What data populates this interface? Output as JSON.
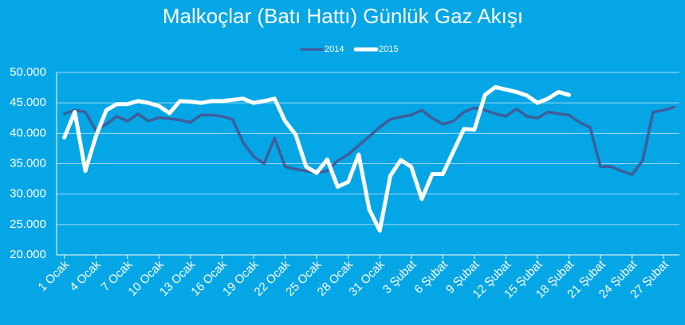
{
  "chart_data": {
    "type": "line",
    "title": "Malkoçlar (Batı Hattı) Günlük Gaz Akışı",
    "categories": [
      "1 Ocak",
      null,
      null,
      "4 Ocak",
      null,
      null,
      "7 Ocak",
      null,
      null,
      "10 Ocak",
      null,
      null,
      "13 Ocak",
      null,
      null,
      "16 Ocak",
      null,
      null,
      "19 Ocak",
      null,
      null,
      "22 Ocak",
      null,
      null,
      "25 Ocak",
      null,
      null,
      "28 Ocak",
      null,
      null,
      "31 Ocak",
      null,
      null,
      "3 Şubat",
      null,
      null,
      "6 Şubat",
      null,
      null,
      "9 Şubat",
      null,
      null,
      "12 Şubat",
      null,
      null,
      "15 Şubat",
      null,
      null,
      "18 Şubat",
      null,
      null,
      "21 Şubat",
      null,
      null,
      "24 Şubat",
      null,
      null,
      "27 Şubat",
      null
    ],
    "series": [
      {
        "name": "2014",
        "color": "#3d5f9c",
        "values": [
          43200,
          43800,
          43500,
          40500,
          41500,
          42800,
          42000,
          43200,
          42000,
          42600,
          42400,
          42200,
          41800,
          43000,
          43000,
          42800,
          42300,
          38500,
          36200,
          35000,
          39200,
          34500,
          34100,
          33800,
          33500,
          33800,
          35500,
          36500,
          38000,
          39500,
          41000,
          42300,
          42700,
          43000,
          43800,
          42500,
          41500,
          42000,
          43500,
          44200,
          43800,
          43200,
          42800,
          44000,
          42800,
          42500,
          43500,
          43200,
          43000,
          41800,
          41000,
          34500,
          34500,
          33800,
          33200,
          35500,
          43500,
          43800,
          44300
        ]
      },
      {
        "name": "2015",
        "color": "#ffffff",
        "values": [
          39300,
          43500,
          33800,
          39500,
          43800,
          44800,
          44800,
          45300,
          45000,
          44500,
          43300,
          45300,
          45200,
          45000,
          45300,
          45300,
          45500,
          45700,
          45000,
          45300,
          45700,
          42000,
          39800,
          34500,
          33500,
          35700,
          31200,
          32000,
          36500,
          27500,
          24000,
          33000,
          35600,
          34500,
          29200,
          33300,
          33300,
          37000,
          40700,
          40600,
          46300,
          47600,
          47200,
          46800,
          46200,
          45000,
          45700,
          46800,
          46300,
          null,
          null,
          null,
          null,
          null,
          null,
          null,
          null,
          null,
          null
        ]
      }
    ],
    "ylim": [
      20000,
      50000
    ],
    "yticks": [
      {
        "value": 20000,
        "label": "20.000"
      },
      {
        "value": 25000,
        "label": "25.000"
      },
      {
        "value": 30000,
        "label": "30.000"
      },
      {
        "value": 35000,
        "label": "35.000"
      },
      {
        "value": 40000,
        "label": "40.000"
      },
      {
        "value": 45000,
        "label": "45.000"
      },
      {
        "value": 50000,
        "label": "50.000"
      }
    ],
    "grid": true,
    "legend": "top"
  }
}
